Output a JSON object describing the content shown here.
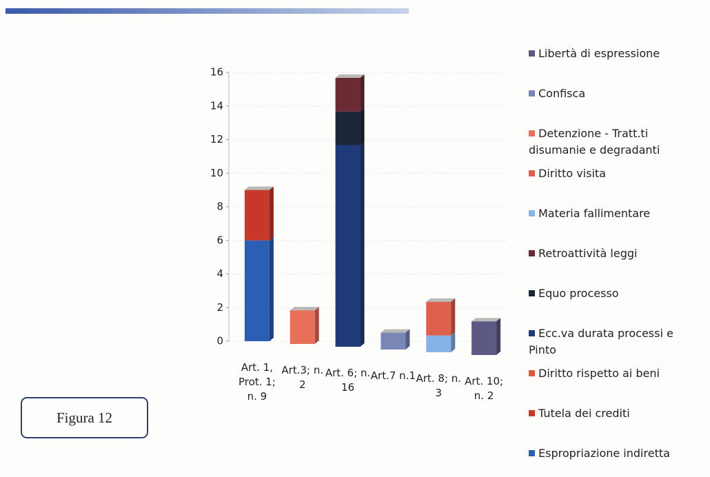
{
  "chart_data": {
    "type": "bar",
    "stacked": true,
    "categories": [
      "Art. 1, Prot. 1; n. 9",
      "Art.3; n. 2",
      "Art. 6; n. 16",
      "Art.7 n.1",
      "Art. 8; n. 3",
      "Art. 10; n. 2"
    ],
    "series": [
      {
        "name": "Espropriazione indiretta",
        "color": "#2a5fb4",
        "values": [
          6,
          0,
          0,
          0,
          0,
          0
        ]
      },
      {
        "name": "Tutela dei crediti",
        "color": "#c8382a",
        "values": [
          3,
          0,
          0,
          0,
          0,
          0
        ]
      },
      {
        "name": "Diritto rispetto ai beni",
        "color": "#d95a3a",
        "values": [
          0,
          0,
          0,
          0,
          0,
          0
        ]
      },
      {
        "name": "Ecc.va durata processi e Pinto",
        "color": "#1f3a78",
        "values": [
          0,
          0,
          12,
          0,
          0,
          0
        ]
      },
      {
        "name": "Equo processo",
        "color": "#1c2638",
        "values": [
          0,
          0,
          2,
          0,
          0,
          0
        ]
      },
      {
        "name": "Retroattività leggi",
        "color": "#6b2a34",
        "values": [
          0,
          0,
          2,
          0,
          0,
          0
        ]
      },
      {
        "name": "Materia fallimentare",
        "color": "#86b2e8",
        "values": [
          0,
          0,
          0,
          0,
          1,
          0
        ]
      },
      {
        "name": "Diritto visita",
        "color": "#e0604e",
        "values": [
          0,
          0,
          0,
          0,
          2,
          0
        ]
      },
      {
        "name": "Detenzione - Tratt.ti disumanie e degradanti",
        "color": "#e8705a",
        "values": [
          0,
          2,
          0,
          0,
          0,
          0
        ]
      },
      {
        "name": "Confisca",
        "color": "#7a86b6",
        "values": [
          0,
          0,
          0,
          1,
          0,
          0
        ]
      },
      {
        "name": "Libertà di espressione",
        "color": "#5c5a84",
        "values": [
          0,
          0,
          0,
          0,
          0,
          2
        ]
      }
    ],
    "ylim": [
      0,
      16
    ],
    "yticks": [
      0,
      2,
      4,
      6,
      8,
      10,
      12,
      14,
      16
    ],
    "grid": true
  },
  "caption": "Figura 12"
}
